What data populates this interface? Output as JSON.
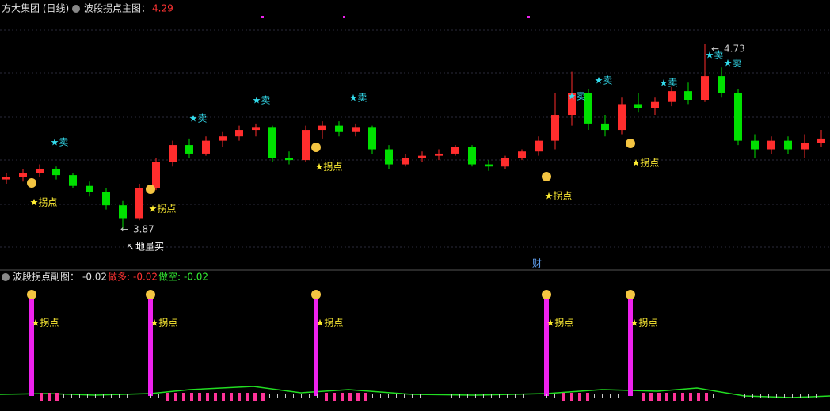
{
  "header": {
    "title": "方大集团 (日线)",
    "main_indicator": "波段拐点主图：",
    "main_value": 4.29
  },
  "chart_data": {
    "type": "candlestick",
    "up_color": "#ff2d2d",
    "down_color": "#00e000",
    "ylim": [
      3.69,
      4.86
    ],
    "open": [
      4.1,
      4.11,
      4.13,
      4.15,
      4.12,
      4.07,
      4.04,
      3.98,
      3.92,
      4.06,
      4.18,
      4.26,
      4.22,
      4.28,
      4.3,
      4.33,
      4.34,
      4.2,
      4.19,
      4.33,
      4.35,
      4.32,
      4.34,
      4.24,
      4.17,
      4.2,
      4.21,
      4.22,
      4.25,
      4.17,
      4.16,
      4.2,
      4.23,
      4.28,
      4.4,
      4.5,
      4.36,
      4.33,
      4.45,
      4.43,
      4.46,
      4.51,
      4.47,
      4.58,
      4.5,
      4.28,
      4.24,
      4.28,
      4.24,
      4.27
    ],
    "high": [
      4.13,
      4.15,
      4.17,
      4.16,
      4.13,
      4.09,
      4.06,
      4.0,
      4.08,
      4.2,
      4.28,
      4.29,
      4.3,
      4.32,
      4.35,
      4.36,
      4.35,
      4.23,
      4.35,
      4.37,
      4.37,
      4.36,
      4.35,
      4.26,
      4.22,
      4.23,
      4.24,
      4.26,
      4.26,
      4.19,
      4.21,
      4.24,
      4.3,
      4.5,
      4.6,
      4.52,
      4.4,
      4.48,
      4.5,
      4.48,
      4.53,
      4.55,
      4.73,
      4.62,
      4.52,
      4.31,
      4.3,
      4.3,
      4.31,
      4.33
    ],
    "low": [
      4.08,
      4.09,
      4.11,
      4.1,
      4.06,
      4.02,
      3.96,
      3.87,
      3.91,
      4.05,
      4.16,
      4.2,
      4.21,
      4.25,
      4.28,
      4.3,
      4.18,
      4.17,
      4.18,
      4.29,
      4.3,
      4.3,
      4.22,
      4.15,
      4.16,
      4.18,
      4.19,
      4.21,
      4.16,
      4.14,
      4.15,
      4.19,
      4.21,
      4.24,
      4.35,
      4.33,
      4.3,
      4.31,
      4.41,
      4.4,
      4.44,
      4.45,
      4.46,
      4.48,
      4.26,
      4.2,
      4.22,
      4.22,
      4.2,
      4.25
    ],
    "close": [
      4.11,
      4.13,
      4.15,
      4.12,
      4.07,
      4.04,
      3.98,
      3.92,
      4.06,
      4.18,
      4.26,
      4.22,
      4.28,
      4.3,
      4.33,
      4.34,
      4.2,
      4.19,
      4.33,
      4.35,
      4.32,
      4.34,
      4.24,
      4.17,
      4.2,
      4.21,
      4.22,
      4.25,
      4.17,
      4.16,
      4.2,
      4.23,
      4.28,
      4.4,
      4.5,
      4.36,
      4.33,
      4.45,
      4.43,
      4.46,
      4.51,
      4.47,
      4.58,
      4.5,
      4.28,
      4.24,
      4.28,
      4.24,
      4.27,
      4.29
    ],
    "annotations": {
      "sell": "★卖",
      "turn": "★拐点",
      "low": 3.87,
      "high": 4.73,
      "buy": "地量买",
      "finance": "财"
    }
  },
  "sub_panel": {
    "title": "波段拐点副图：",
    "value": -0.02,
    "long_label": "做多:",
    "long_value": -0.02,
    "short_label": "做空:",
    "short_value": -0.02,
    "turn": "★拐点"
  }
}
